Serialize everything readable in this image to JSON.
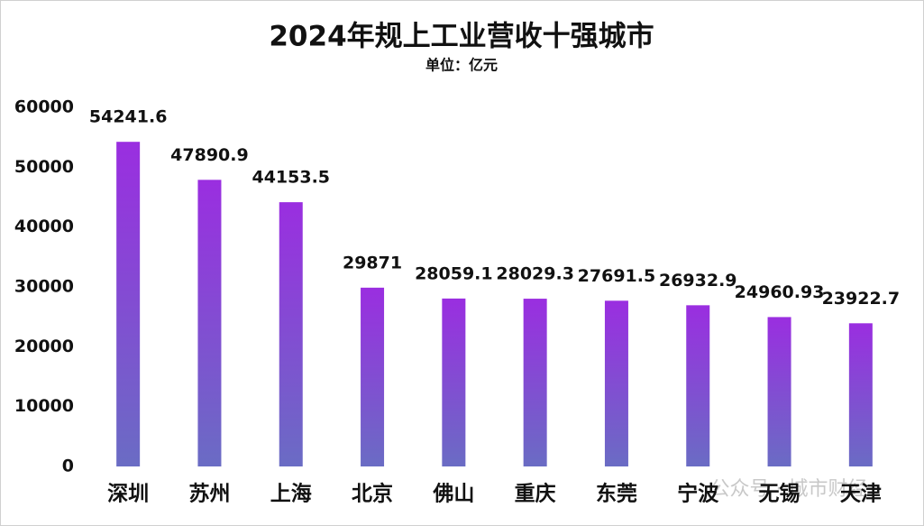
{
  "chart_data": {
    "type": "bar",
    "title": "2024年规上工业营收十强城市",
    "subtitle": "单位：亿元",
    "categories": [
      "深圳",
      "苏州",
      "上海",
      "北京",
      "佛山",
      "重庆",
      "东莞",
      "宁波",
      "无锡",
      "天津"
    ],
    "values": [
      54241.6,
      47890.9,
      44153.5,
      29871,
      28059.1,
      28029.3,
      27691.5,
      26932.9,
      24960.93,
      23922.7
    ],
    "color": "#9a2ee0",
    "gradient_to": "#6a6cc4",
    "ylim": [
      0,
      60000
    ],
    "yticks": [
      0,
      10000,
      20000,
      30000,
      40000,
      50000,
      60000
    ],
    "grid": false,
    "watermark": "公众号 · 城市财经"
  }
}
